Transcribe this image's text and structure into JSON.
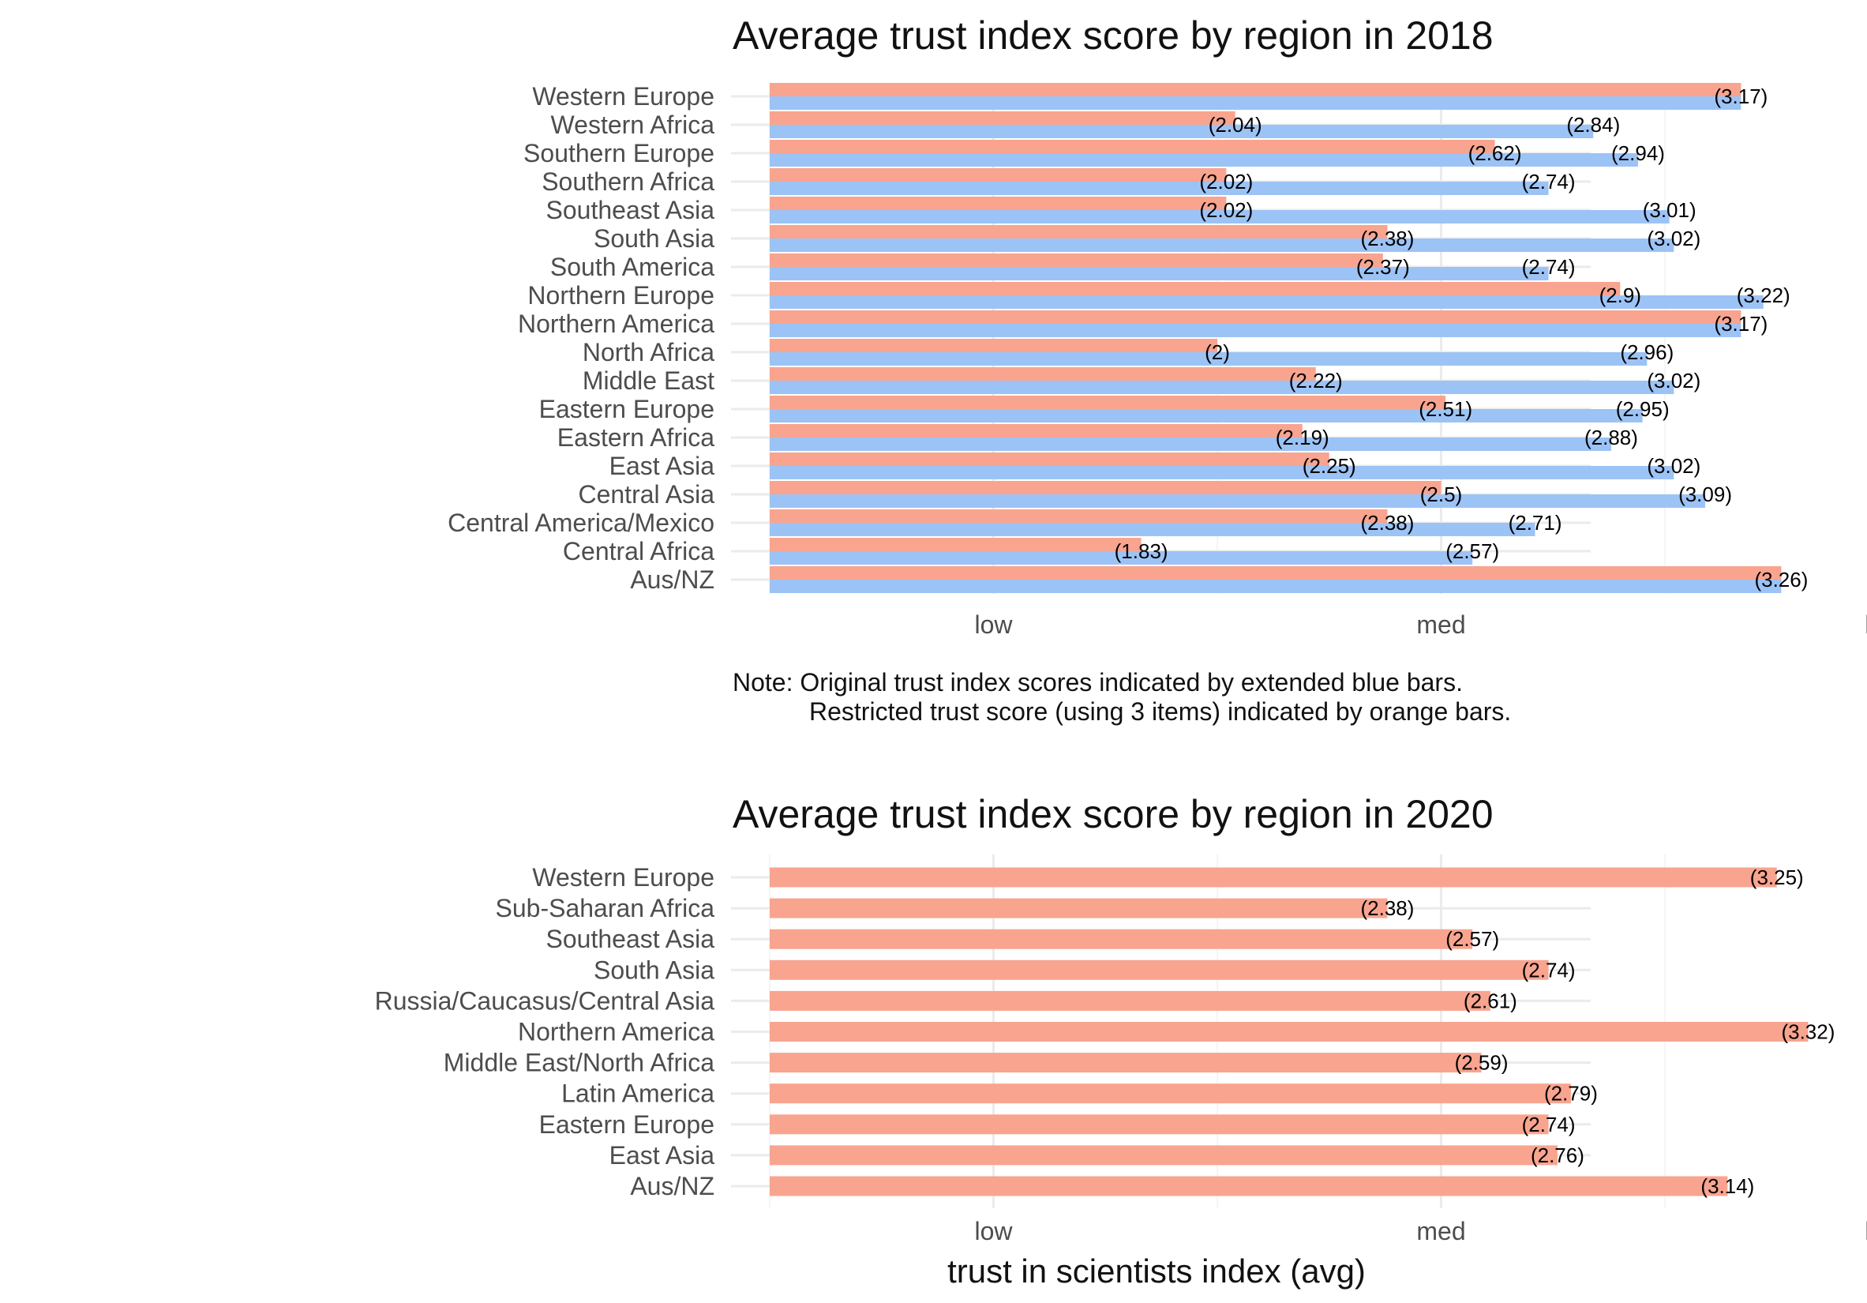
{
  "colors": {
    "restricted": "#f8a48f",
    "original": "#9cc3f5"
  },
  "chart_data": [
    {
      "type": "bar",
      "orientation": "horizontal",
      "title": "Average trust index score by region in 2018",
      "xlabel": "",
      "xlim": [
        1.0,
        3.5
      ],
      "x_ticks": [
        {
          "value": 1.5,
          "label": "low"
        },
        {
          "value": 2.5,
          "label": "med"
        },
        {
          "value": 3.5,
          "label": "high"
        }
      ],
      "grid": true,
      "categories": [
        "Western Europe",
        "Western Africa",
        "Southern Europe",
        "Southern Africa",
        "Southeast Asia",
        "South Asia",
        "South America",
        "Northern Europe",
        "Northern America",
        "North Africa",
        "Middle East",
        "Eastern Europe",
        "Eastern Africa",
        "East Asia",
        "Central Asia",
        "Central America/Mexico",
        "Central Africa",
        "Aus/NZ"
      ],
      "series": [
        {
          "key": "restricted",
          "values": [
            3.17,
            2.04,
            2.62,
            2.02,
            2.02,
            2.38,
            2.37,
            2.9,
            3.17,
            2.0,
            2.22,
            2.51,
            2.19,
            2.25,
            2.5,
            2.38,
            1.83,
            3.26
          ]
        },
        {
          "key": "original",
          "values": [
            3.17,
            2.84,
            2.94,
            2.74,
            3.01,
            3.02,
            2.74,
            3.22,
            3.17,
            2.96,
            3.02,
            2.95,
            2.88,
            3.02,
            3.09,
            2.71,
            2.57,
            3.26
          ]
        }
      ],
      "data_labels": {
        "restricted": [
          "",
          "(2.04)",
          "(2.62)",
          "(2.02)",
          "(2.02)",
          "(2.38)",
          "(2.37)",
          "(2.9)",
          "",
          "(2)",
          "(2.22)",
          "(2.51)",
          "(2.19)",
          "(2.25)",
          "(2.5)",
          "(2.38)",
          "(1.83)",
          ""
        ],
        "original": [
          "(3.17)",
          "(2.84)",
          "(2.94)",
          "(2.74)",
          "(3.01)",
          "(3.02)",
          "(2.74)",
          "(3.22)",
          "(3.17)",
          "(2.96)",
          "(3.02)",
          "(2.95)",
          "(2.88)",
          "(3.02)",
          "(3.09)",
          "(2.71)",
          "(2.57)",
          "(3.26)"
        ]
      },
      "note": [
        "Note: Original trust index scores indicated by extended blue bars.",
        "Restricted trust score (using 3 items) indicated by orange bars."
      ]
    },
    {
      "type": "bar",
      "orientation": "horizontal",
      "title": "Average trust index score by region in 2020",
      "xlabel": "trust in scientists index (avg)",
      "xlim": [
        1.0,
        3.5
      ],
      "x_ticks": [
        {
          "value": 1.5,
          "label": "low"
        },
        {
          "value": 2.5,
          "label": "med"
        },
        {
          "value": 3.5,
          "label": "high"
        }
      ],
      "grid": true,
      "categories": [
        "Western Europe",
        "Sub-Saharan Africa",
        "Southeast Asia",
        "South Asia",
        "Russia/Caucasus/Central Asia",
        "Northern America",
        "Middle East/North Africa",
        "Latin America",
        "Eastern Europe",
        "East Asia",
        "Aus/NZ"
      ],
      "series": [
        {
          "key": "restricted",
          "values": [
            3.25,
            2.38,
            2.57,
            2.74,
            2.61,
            3.32,
            2.59,
            2.79,
            2.74,
            2.76,
            3.14
          ]
        }
      ],
      "data_labels": {
        "restricted": [
          "(3.25)",
          "(2.38)",
          "(2.57)",
          "(2.74)",
          "(2.61)",
          "(3.32)",
          "(2.59)",
          "(2.79)",
          "(2.74)",
          "(2.76)",
          "(3.14)"
        ]
      }
    }
  ]
}
